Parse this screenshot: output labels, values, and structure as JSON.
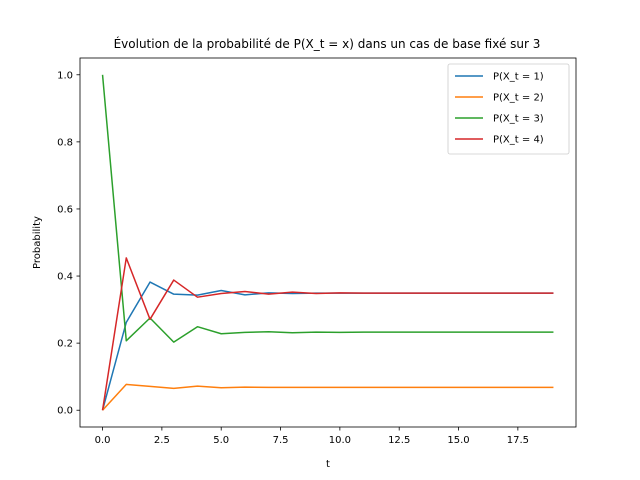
{
  "chart_data": {
    "type": "line",
    "title": "Évolution de la probabilité de P(X_t = x) dans un cas de base fixé sur 3",
    "xlabel": "t",
    "ylabel": "Probability",
    "xlim": [
      -0.95,
      19.95
    ],
    "ylim": [
      -0.05,
      1.05
    ],
    "xticks": [
      0.0,
      2.5,
      5.0,
      7.5,
      10.0,
      12.5,
      15.0,
      17.5
    ],
    "xtick_labels": [
      "0.0",
      "2.5",
      "5.0",
      "7.5",
      "10.0",
      "12.5",
      "15.0",
      "17.5"
    ],
    "yticks": [
      0.0,
      0.2,
      0.4,
      0.6,
      0.8,
      1.0
    ],
    "ytick_labels": [
      "0.0",
      "0.2",
      "0.4",
      "0.6",
      "0.8",
      "1.0"
    ],
    "grid": false,
    "legend_position": "top-right",
    "x": [
      0,
      1,
      2,
      3,
      4,
      5,
      6,
      7,
      8,
      9,
      10,
      11,
      12,
      13,
      14,
      15,
      16,
      17,
      18,
      19
    ],
    "series": [
      {
        "name": "P(X_t = 1)",
        "color": "#1f77b4",
        "values": [
          0.0,
          0.262,
          0.382,
          0.346,
          0.343,
          0.357,
          0.344,
          0.35,
          0.348,
          0.349,
          0.349,
          0.349,
          0.349,
          0.349,
          0.349,
          0.349,
          0.349,
          0.349,
          0.349,
          0.349
        ]
      },
      {
        "name": "P(X_t = 2)",
        "color": "#ff7f0e",
        "values": [
          0.0,
          0.077,
          0.071,
          0.065,
          0.072,
          0.067,
          0.069,
          0.068,
          0.068,
          0.068,
          0.068,
          0.068,
          0.068,
          0.068,
          0.068,
          0.068,
          0.068,
          0.068,
          0.068,
          0.068
        ]
      },
      {
        "name": "P(X_t = 3)",
        "color": "#2ca02c",
        "values": [
          1.0,
          0.207,
          0.275,
          0.203,
          0.249,
          0.228,
          0.232,
          0.234,
          0.231,
          0.233,
          0.232,
          0.233,
          0.233,
          0.233,
          0.233,
          0.233,
          0.233,
          0.233,
          0.233,
          0.233
        ]
      },
      {
        "name": "P(X_t = 4)",
        "color": "#d62728",
        "values": [
          0.0,
          0.454,
          0.271,
          0.388,
          0.337,
          0.348,
          0.354,
          0.346,
          0.352,
          0.348,
          0.35,
          0.349,
          0.349,
          0.349,
          0.349,
          0.349,
          0.349,
          0.349,
          0.349,
          0.349
        ]
      }
    ]
  }
}
